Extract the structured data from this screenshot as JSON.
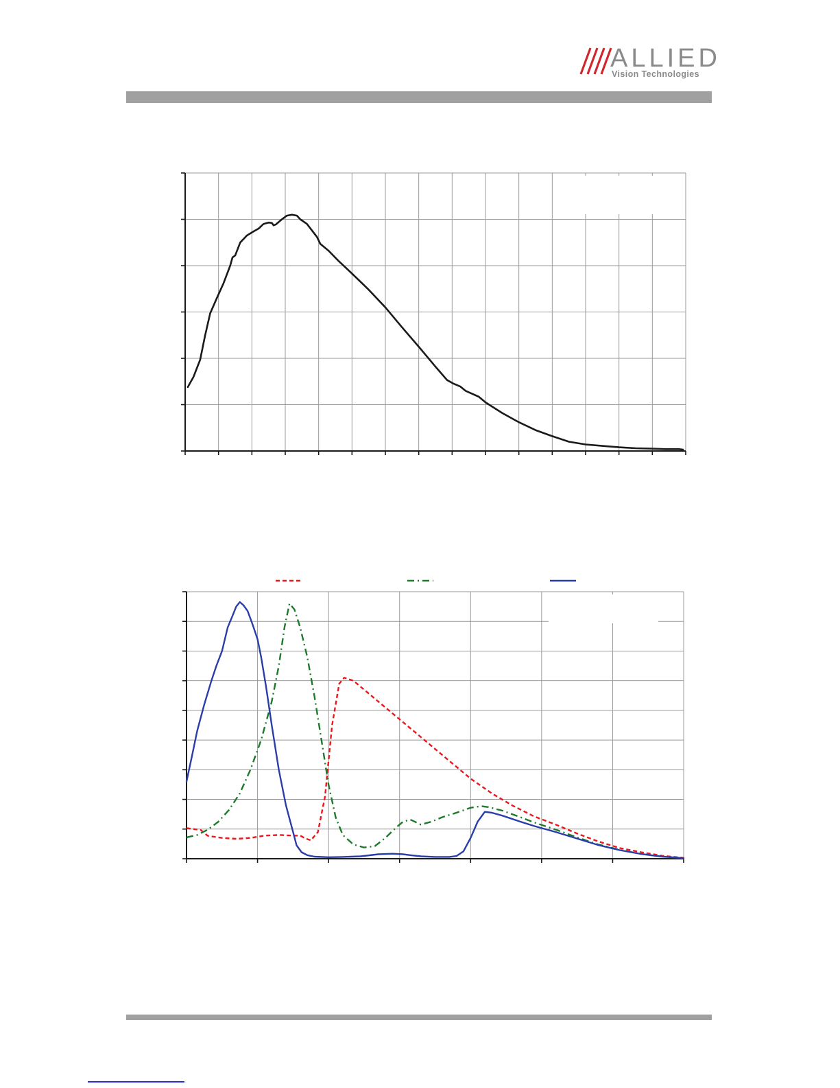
{
  "brand": {
    "name": "ALLIED",
    "subtitle": "Vision Technologies",
    "accent_color": "#d2262e",
    "gray_color": "#8a8a8a"
  },
  "chart_data": [
    {
      "type": "line",
      "title": "",
      "xlabel": "",
      "ylabel": "",
      "grid": true,
      "x_ticks": 15,
      "y_ticks": 6,
      "xlim": [
        0,
        15
      ],
      "ylim": [
        0,
        6
      ],
      "series": [
        {
          "color": "#1a1a1a",
          "style": "solid",
          "points": [
            [
              0.08,
              1.38
            ],
            [
              0.25,
              1.6
            ],
            [
              0.45,
              1.97
            ],
            [
              0.6,
              2.5
            ],
            [
              0.75,
              2.97
            ],
            [
              0.95,
              3.3
            ],
            [
              1.15,
              3.62
            ],
            [
              1.35,
              4.0
            ],
            [
              1.42,
              4.18
            ],
            [
              1.5,
              4.22
            ],
            [
              1.65,
              4.5
            ],
            [
              1.85,
              4.65
            ],
            [
              2.05,
              4.74
            ],
            [
              2.2,
              4.8
            ],
            [
              2.35,
              4.9
            ],
            [
              2.5,
              4.93
            ],
            [
              2.6,
              4.92
            ],
            [
              2.65,
              4.87
            ],
            [
              2.72,
              4.89
            ],
            [
              2.9,
              5.0
            ],
            [
              3.05,
              5.08
            ],
            [
              3.2,
              5.1
            ],
            [
              3.35,
              5.08
            ],
            [
              3.45,
              5.0
            ],
            [
              3.65,
              4.9
            ],
            [
              3.8,
              4.76
            ],
            [
              3.95,
              4.62
            ],
            [
              4.05,
              4.47
            ],
            [
              4.3,
              4.32
            ],
            [
              4.6,
              4.1
            ],
            [
              5.0,
              3.83
            ],
            [
              5.5,
              3.48
            ],
            [
              6.0,
              3.1
            ],
            [
              6.5,
              2.67
            ],
            [
              7.0,
              2.25
            ],
            [
              7.5,
              1.82
            ],
            [
              7.85,
              1.53
            ],
            [
              8.05,
              1.45
            ],
            [
              8.25,
              1.39
            ],
            [
              8.4,
              1.3
            ],
            [
              8.55,
              1.25
            ],
            [
              8.8,
              1.17
            ],
            [
              9.0,
              1.05
            ],
            [
              9.5,
              0.82
            ],
            [
              10.0,
              0.62
            ],
            [
              10.5,
              0.45
            ],
            [
              11.0,
              0.32
            ],
            [
              11.5,
              0.2
            ],
            [
              12.0,
              0.14
            ],
            [
              12.5,
              0.11
            ],
            [
              13.0,
              0.08
            ],
            [
              13.5,
              0.06
            ],
            [
              14.0,
              0.05
            ],
            [
              14.4,
              0.04
            ],
            [
              14.8,
              0.04
            ],
            [
              14.92,
              0.03
            ]
          ]
        }
      ]
    },
    {
      "type": "line",
      "title": "",
      "xlabel": "",
      "ylabel": "",
      "grid": true,
      "x_ticks": 7,
      "y_ticks": 9,
      "xlim": [
        0,
        7
      ],
      "ylim": [
        0,
        9
      ],
      "legend": "top",
      "series": [
        {
          "color": "#e8191e",
          "style": "dashed",
          "points": [
            [
              0.0,
              1.03
            ],
            [
              0.2,
              0.97
            ],
            [
              0.3,
              0.77
            ],
            [
              0.5,
              0.7
            ],
            [
              0.7,
              0.67
            ],
            [
              0.9,
              0.7
            ],
            [
              1.1,
              0.78
            ],
            [
              1.3,
              0.8
            ],
            [
              1.5,
              0.78
            ],
            [
              1.6,
              0.78
            ],
            [
              1.68,
              0.68
            ],
            [
              1.75,
              0.62
            ],
            [
              1.85,
              0.9
            ],
            [
              1.95,
              2.1
            ],
            [
              2.05,
              4.5
            ],
            [
              2.15,
              5.9
            ],
            [
              2.22,
              6.1
            ],
            [
              2.35,
              6.0
            ],
            [
              2.5,
              5.7
            ],
            [
              2.8,
              5.1
            ],
            [
              3.1,
              4.5
            ],
            [
              3.4,
              3.9
            ],
            [
              3.7,
              3.3
            ],
            [
              4.0,
              2.7
            ],
            [
              4.3,
              2.2
            ],
            [
              4.6,
              1.78
            ],
            [
              4.9,
              1.42
            ],
            [
              5.2,
              1.15
            ],
            [
              5.5,
              0.85
            ],
            [
              5.8,
              0.58
            ],
            [
              6.1,
              0.36
            ],
            [
              6.4,
              0.22
            ],
            [
              6.7,
              0.1
            ],
            [
              7.0,
              0.03
            ]
          ]
        },
        {
          "color": "#1e7a2a",
          "style": "dashdot",
          "points": [
            [
              0.0,
              0.72
            ],
            [
              0.15,
              0.8
            ],
            [
              0.3,
              0.98
            ],
            [
              0.45,
              1.25
            ],
            [
              0.6,
              1.65
            ],
            [
              0.75,
              2.2
            ],
            [
              0.9,
              3.0
            ],
            [
              1.05,
              4.0
            ],
            [
              1.2,
              5.3
            ],
            [
              1.3,
              6.5
            ],
            [
              1.38,
              7.8
            ],
            [
              1.45,
              8.6
            ],
            [
              1.52,
              8.4
            ],
            [
              1.6,
              7.8
            ],
            [
              1.7,
              6.8
            ],
            [
              1.8,
              5.5
            ],
            [
              1.9,
              4.0
            ],
            [
              2.0,
              2.5
            ],
            [
              2.1,
              1.4
            ],
            [
              2.2,
              0.8
            ],
            [
              2.35,
              0.48
            ],
            [
              2.5,
              0.38
            ],
            [
              2.65,
              0.42
            ],
            [
              2.8,
              0.7
            ],
            [
              2.95,
              1.05
            ],
            [
              3.05,
              1.25
            ],
            [
              3.15,
              1.32
            ],
            [
              3.3,
              1.15
            ],
            [
              3.45,
              1.25
            ],
            [
              3.6,
              1.4
            ],
            [
              3.8,
              1.55
            ],
            [
              4.0,
              1.72
            ],
            [
              4.15,
              1.77
            ],
            [
              4.25,
              1.74
            ],
            [
              4.45,
              1.62
            ],
            [
              4.7,
              1.4
            ],
            [
              4.9,
              1.22
            ],
            [
              5.2,
              0.98
            ],
            [
              5.5,
              0.72
            ],
            [
              5.8,
              0.48
            ],
            [
              6.1,
              0.3
            ],
            [
              6.4,
              0.16
            ],
            [
              6.7,
              0.07
            ],
            [
              7.0,
              0.02
            ]
          ]
        },
        {
          "color": "#2a3ea8",
          "style": "solid",
          "points": [
            [
              0.0,
              2.6
            ],
            [
              0.08,
              3.5
            ],
            [
              0.15,
              4.3
            ],
            [
              0.25,
              5.2
            ],
            [
              0.35,
              6.0
            ],
            [
              0.42,
              6.5
            ],
            [
              0.5,
              7.0
            ],
            [
              0.58,
              7.8
            ],
            [
              0.65,
              8.2
            ],
            [
              0.7,
              8.5
            ],
            [
              0.75,
              8.65
            ],
            [
              0.8,
              8.55
            ],
            [
              0.86,
              8.35
            ],
            [
              0.93,
              7.9
            ],
            [
              1.0,
              7.4
            ],
            [
              1.05,
              6.8
            ],
            [
              1.12,
              5.8
            ],
            [
              1.2,
              4.5
            ],
            [
              1.3,
              3.0
            ],
            [
              1.4,
              1.8
            ],
            [
              1.5,
              0.9
            ],
            [
              1.55,
              0.45
            ],
            [
              1.62,
              0.22
            ],
            [
              1.7,
              0.12
            ],
            [
              1.8,
              0.07
            ],
            [
              2.0,
              0.05
            ],
            [
              2.2,
              0.06
            ],
            [
              2.45,
              0.08
            ],
            [
              2.7,
              0.15
            ],
            [
              2.9,
              0.17
            ],
            [
              3.05,
              0.15
            ],
            [
              3.15,
              0.12
            ],
            [
              3.3,
              0.08
            ],
            [
              3.5,
              0.06
            ],
            [
              3.7,
              0.06
            ],
            [
              3.8,
              0.09
            ],
            [
              3.9,
              0.25
            ],
            [
              4.0,
              0.7
            ],
            [
              4.1,
              1.25
            ],
            [
              4.2,
              1.58
            ],
            [
              4.3,
              1.55
            ],
            [
              4.45,
              1.45
            ],
            [
              4.7,
              1.25
            ],
            [
              4.9,
              1.1
            ],
            [
              5.2,
              0.9
            ],
            [
              5.5,
              0.68
            ],
            [
              5.8,
              0.46
            ],
            [
              6.1,
              0.29
            ],
            [
              6.4,
              0.16
            ],
            [
              6.7,
              0.07
            ],
            [
              7.0,
              0.02
            ]
          ]
        }
      ]
    }
  ]
}
